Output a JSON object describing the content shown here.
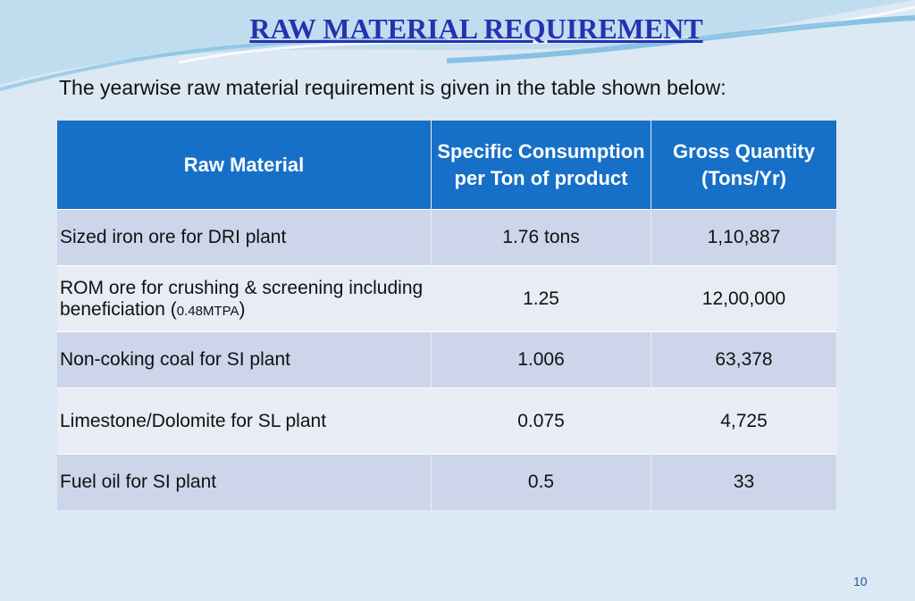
{
  "header": {
    "title": "RAW MATERIAL REQUIREMENT",
    "intro": "The yearwise raw material requirement is given in the table shown below:"
  },
  "table": {
    "columns": [
      "Raw Material",
      "Specific Consumption per Ton of product",
      "Gross Quantity (Tons/Yr)"
    ],
    "rows": [
      [
        "Sized iron ore for DRI plant",
        "1.76 tons",
        "1,10,887"
      ],
      [
        [
          "ROM ore for crushing & screening including beneficiation (",
          "0.48MTPA",
          ")"
        ],
        "1.25",
        "12,00,000"
      ],
      [
        "Non-coking coal for SI plant",
        "1.006",
        "63,378"
      ],
      [
        "Limestone/Dolomite for SL plant",
        "0.075",
        "4,725"
      ],
      [
        "Fuel oil for SI plant",
        "0.5",
        "33"
      ]
    ]
  },
  "footer": {
    "page_number": "10"
  }
}
